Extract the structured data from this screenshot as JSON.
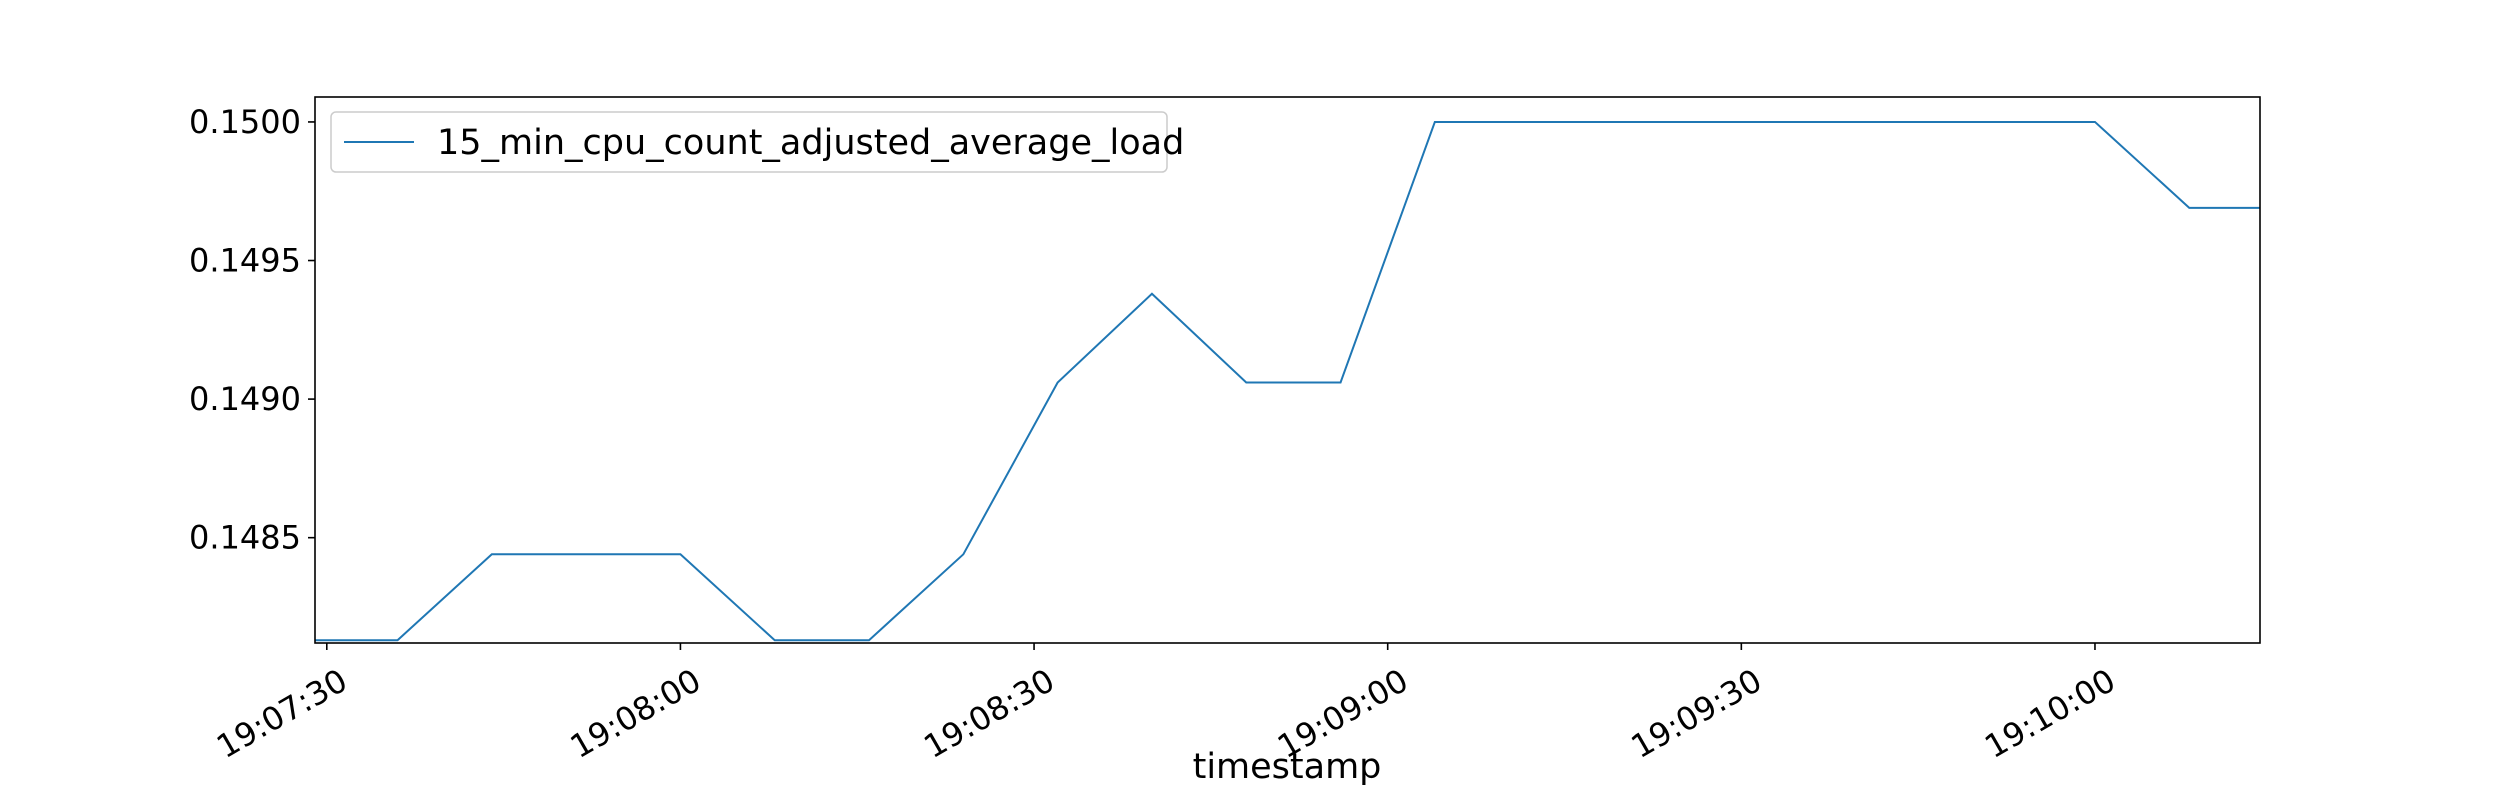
{
  "chart_data": {
    "type": "line",
    "xlabel": "timestamp",
    "ylabel": "",
    "title": "",
    "xlim": [
      "19:07:29",
      "19:10:14"
    ],
    "ylim": [
      0.14812,
      0.15009
    ],
    "grid": false,
    "legend_position": "top-left",
    "x_ticks": [
      "19:07:30",
      "19:08:00",
      "19:08:30",
      "19:09:00",
      "19:09:30",
      "19:10:00"
    ],
    "y_ticks": [
      "0.1485",
      "0.1490",
      "0.1495",
      "0.1500"
    ],
    "series": [
      {
        "name": "15_min_cpu_count_adjusted_average_load",
        "color": "#1f77b4",
        "x": [
          "19:07:28",
          "19:07:36",
          "19:07:44",
          "19:07:52",
          "19:08:00",
          "19:08:08",
          "19:08:16",
          "19:08:24",
          "19:08:32",
          "19:08:40",
          "19:08:48",
          "19:08:56",
          "19:09:04",
          "19:09:12",
          "19:09:20",
          "19:09:28",
          "19:09:36",
          "19:09:44",
          "19:09:52",
          "19:10:00",
          "19:10:08",
          "19:10:16"
        ],
        "values": [
          0.14813,
          0.14813,
          0.14844,
          0.14844,
          0.14844,
          0.14813,
          0.14813,
          0.14844,
          0.14906,
          0.14938,
          0.14906,
          0.14906,
          0.15,
          0.15,
          0.15,
          0.15,
          0.15,
          0.15,
          0.15,
          0.15,
          0.14969,
          0.14969
        ]
      }
    ]
  }
}
